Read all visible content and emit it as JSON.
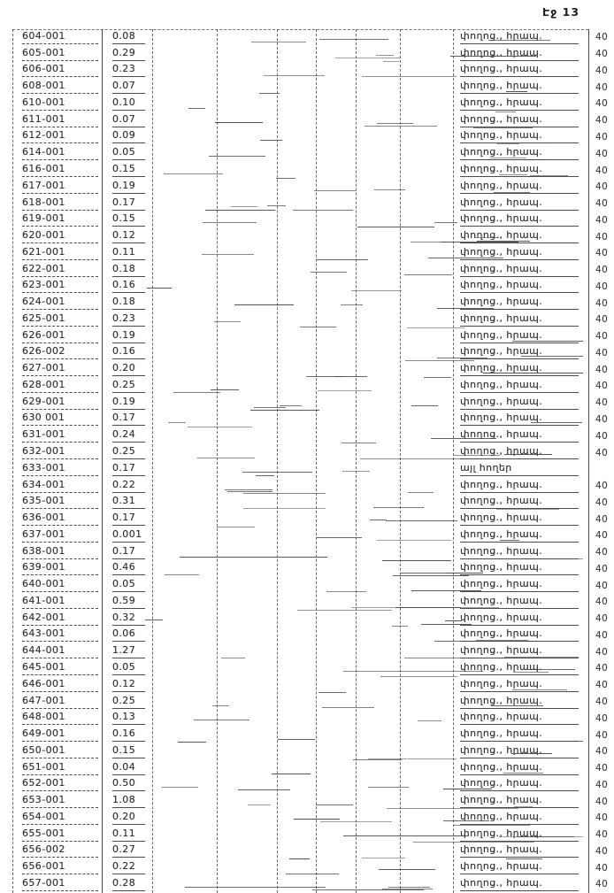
{
  "page": {
    "header_label": "Էջ 13"
  },
  "table": {
    "land_use_street": "փողոց., հրապ.",
    "land_use_other": "այլ հողեր",
    "zone_value": "40",
    "rows": [
      {
        "code": "604-001",
        "area": "0.08",
        "use": "փողոց., հրապ.",
        "zone": "40"
      },
      {
        "code": "605-001",
        "area": "0.29",
        "use": "փողոց., հրապ.",
        "zone": "40"
      },
      {
        "code": "606-001",
        "area": "0.23",
        "use": "փողոց., հրապ.",
        "zone": "40"
      },
      {
        "code": "608-001",
        "area": "0.07",
        "use": "փողոց., հրապ.",
        "zone": "40"
      },
      {
        "code": "610-001",
        "area": "0.10",
        "use": "փողոց., հրապ.",
        "zone": "40"
      },
      {
        "code": "611-001",
        "area": "0.07",
        "use": "փողոց., հրապ.",
        "zone": "40"
      },
      {
        "code": "612-001",
        "area": "0.09",
        "use": "փողոց., հրապ.",
        "zone": "40"
      },
      {
        "code": "614-001",
        "area": "0.05",
        "use": "փողոց., հրապ.",
        "zone": "40"
      },
      {
        "code": "616-001",
        "area": "0.15",
        "use": "փողոց., հրապ.",
        "zone": "40"
      },
      {
        "code": "617-001",
        "area": "0.19",
        "use": "փողոց., հրապ.",
        "zone": "40"
      },
      {
        "code": "618-001",
        "area": "0.17",
        "use": "փողոց., հրապ.",
        "zone": "40"
      },
      {
        "code": "619-001",
        "area": "0.15",
        "use": "փողոց., հրապ.",
        "zone": "40"
      },
      {
        "code": "620-001",
        "area": "0.12",
        "use": "փողոց., հրապ.",
        "zone": "40"
      },
      {
        "code": "621-001",
        "area": "0.11",
        "use": "փողոց., հրապ.",
        "zone": "40"
      },
      {
        "code": "622-001",
        "area": "0.18",
        "use": "փողոց., հրապ.",
        "zone": "40"
      },
      {
        "code": "623-001",
        "area": "0.16",
        "use": "փողոց., հրապ.",
        "zone": "40"
      },
      {
        "code": "624-001",
        "area": "0.18",
        "use": "փողոց., հրապ.",
        "zone": "40"
      },
      {
        "code": "625-001",
        "area": "0.23",
        "use": "փողոց., հրապ.",
        "zone": "40"
      },
      {
        "code": "626-001",
        "area": "0.19",
        "use": "փողոց., հրապ.",
        "zone": "40"
      },
      {
        "code": "626-002",
        "area": "0.16",
        "use": "փողոց., հրապ.",
        "zone": "40"
      },
      {
        "code": "627-001",
        "area": "0.20",
        "use": "փողոց., հրապ.",
        "zone": "40"
      },
      {
        "code": "628-001",
        "area": "0.25",
        "use": "փողոց., հրապ.",
        "zone": "40"
      },
      {
        "code": "629-001",
        "area": "0.19",
        "use": "փողոց., հրապ.",
        "zone": "40"
      },
      {
        "code": "630 001",
        "area": "0.17",
        "use": "փողոց., հրապ.",
        "zone": "40"
      },
      {
        "code": "631-001",
        "area": "0.24",
        "use": "փողոց., հրապ.",
        "zone": "40"
      },
      {
        "code": "632-001",
        "area": "0.25",
        "use": "փողոց., հրապ.",
        "zone": "40"
      },
      {
        "code": "633-001",
        "area": "0.17",
        "use": "այլ հողեր",
        "zone": ""
      },
      {
        "code": "634-001",
        "area": "0.22",
        "use": "փողոց., հրապ.",
        "zone": "40"
      },
      {
        "code": "635-001",
        "area": "0.31",
        "use": "փողոց., հրապ.",
        "zone": "40"
      },
      {
        "code": "636-001",
        "area": "0.17",
        "use": "փողոց., հրապ.",
        "zone": "40"
      },
      {
        "code": "637-001",
        "area": "0.001",
        "use": "փողոց., հրապ.",
        "zone": "40"
      },
      {
        "code": "638-001",
        "area": "0.17",
        "use": "փողոց., հրապ.",
        "zone": "40"
      },
      {
        "code": "639-001",
        "area": "0.46",
        "use": "փողոց., հրապ.",
        "zone": "40"
      },
      {
        "code": "640-001",
        "area": "0.05",
        "use": "փողոց., հրապ.",
        "zone": "40"
      },
      {
        "code": "641-001",
        "area": "0.59",
        "use": "փողոց., հրապ.",
        "zone": "40"
      },
      {
        "code": "642-001",
        "area": "0.32",
        "use": "փողոց., հրապ.",
        "zone": "40"
      },
      {
        "code": "643-001",
        "area": "0.06",
        "use": "փողոց., հրապ.",
        "zone": "40"
      },
      {
        "code": "644-001",
        "area": "1.27",
        "use": "փողոց., հրապ.",
        "zone": "40"
      },
      {
        "code": "645-001",
        "area": "0.05",
        "use": "փողոց., հրապ.",
        "zone": "40"
      },
      {
        "code": "646-001",
        "area": "0.12",
        "use": "փողոց., հրապ.",
        "zone": "40"
      },
      {
        "code": "647-001",
        "area": "0.25",
        "use": "փողոց., հրապ.",
        "zone": "40"
      },
      {
        "code": "648-001",
        "area": "0.13",
        "use": "փողոց., հրապ.",
        "zone": "40"
      },
      {
        "code": "649-001",
        "area": "0.16",
        "use": "փողոց., հրապ.",
        "zone": "40"
      },
      {
        "code": "650-001",
        "area": "0.15",
        "use": "փողոց., հրապ.",
        "zone": "40"
      },
      {
        "code": "651-001",
        "area": "0.04",
        "use": "փողոց., հրապ.",
        "zone": "40"
      },
      {
        "code": "652-001",
        "area": "0.50",
        "use": "փողոց., հրապ.",
        "zone": "40"
      },
      {
        "code": "653-001",
        "area": "1.08",
        "use": "փողոց., հրապ.",
        "zone": "40"
      },
      {
        "code": "654-001",
        "area": "0.20",
        "use": "փողոց., հրապ.",
        "zone": "40"
      },
      {
        "code": "655-001",
        "area": "0.11",
        "use": "փողոց., հրապ.",
        "zone": "40"
      },
      {
        "code": "656-002",
        "area": "0.27",
        "use": "փողոց., հրապ.",
        "zone": "40"
      },
      {
        "code": "656-001",
        "area": "0.22",
        "use": "փողոց., հրապ.",
        "zone": "40"
      },
      {
        "code": "657-001",
        "area": "0.28",
        "use": "փողոց., հրապ.",
        "zone": "40"
      }
    ]
  }
}
